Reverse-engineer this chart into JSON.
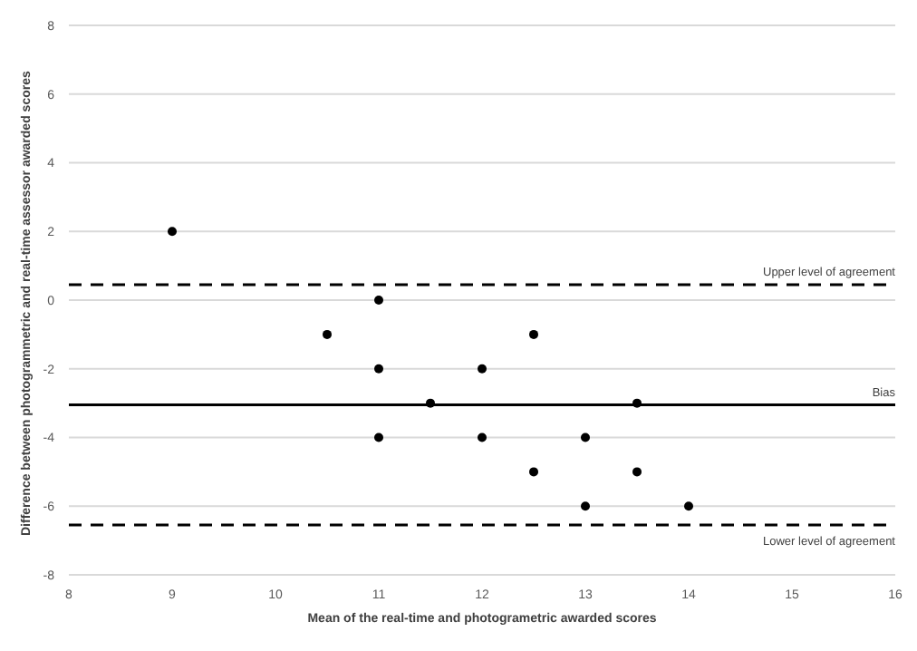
{
  "chart_data": {
    "type": "scatter",
    "xlabel": "Mean of the real-time and photogrametric awarded scores",
    "ylabel": "Difference between photogrammetric and real-time assessor awarded scores",
    "series": [
      {
        "color": "#000000",
        "x": [
          9,
          10.5,
          11,
          11,
          11,
          11.5,
          12,
          12,
          12.5,
          12.5,
          13,
          13,
          13.5,
          13.5,
          14
        ],
        "values": [
          2,
          -1,
          0,
          -2,
          -4,
          -3,
          -2,
          -4,
          -1,
          -5,
          -4,
          -6,
          -3,
          -5,
          -6
        ]
      }
    ],
    "xlim": [
      8,
      16
    ],
    "xticks": [
      8,
      9,
      10,
      11,
      12,
      13,
      14,
      15,
      16
    ],
    "ylim": [
      -8,
      8
    ],
    "yticks": [
      -8,
      -6,
      -4,
      -2,
      0,
      2,
      4,
      6,
      8
    ],
    "grid": "y",
    "marker": "circle",
    "legend": false,
    "ref_lines": [
      {
        "axis": "y",
        "value": 0.45,
        "label": "Upper level of agreement",
        "line_style": "dashed",
        "color": "#000000"
      },
      {
        "axis": "y",
        "value": -3.05,
        "label": "Bias",
        "line_style": "solid",
        "color": "#000000"
      },
      {
        "axis": "y",
        "value": -6.55,
        "label": "Lower level of agreement",
        "line_style": "dashed",
        "color": "#000000"
      }
    ]
  }
}
